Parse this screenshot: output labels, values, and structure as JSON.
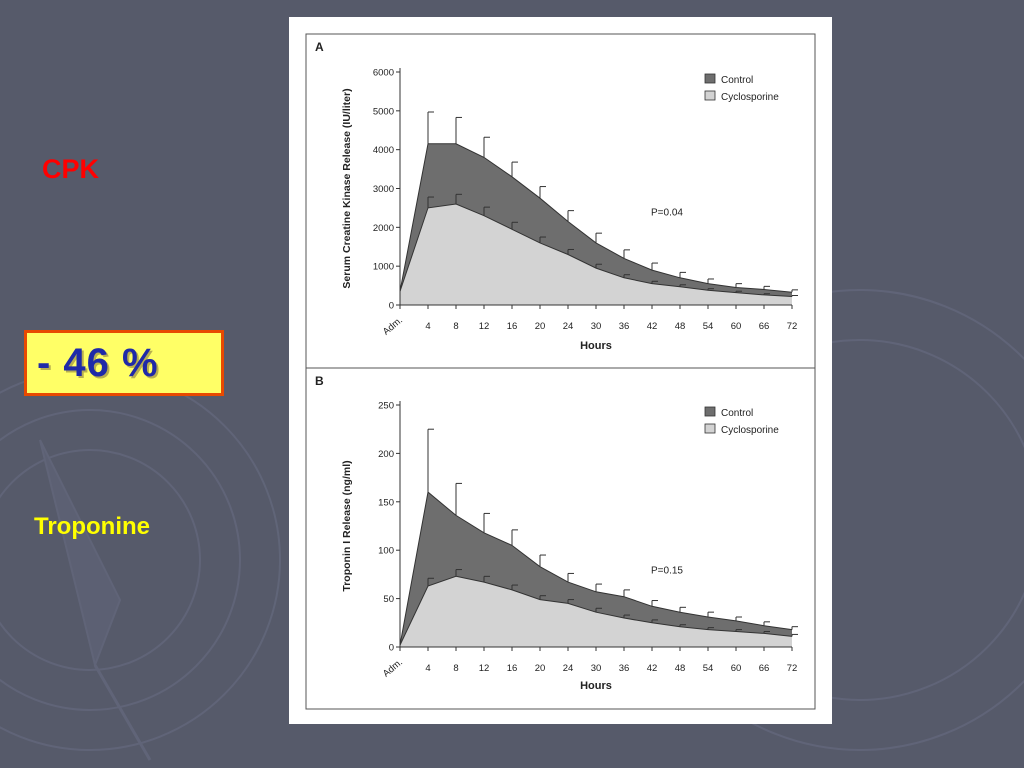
{
  "slide": {
    "label_cpk": "CPK",
    "reduction": "- 46 %",
    "label_troponine": "Troponine",
    "colors": {
      "background": "#565a6a",
      "cpk_label": "#ff0000",
      "troponine_label": "#ffff00",
      "box_fill": "#ffff66",
      "box_border": "#e84a00",
      "box_text": "#1f2aa8"
    }
  },
  "chart_data": [
    {
      "panel": "A",
      "type": "area",
      "x": [
        "Adm.",
        "4",
        "8",
        "12",
        "16",
        "20",
        "24",
        "30",
        "36",
        "42",
        "48",
        "54",
        "60",
        "66",
        "72"
      ],
      "xlabel": "Hours",
      "ylabel": "Serum Creatine Kinase Release (IU/liter)",
      "ylim": [
        0,
        6000
      ],
      "yticks": [
        0,
        1000,
        2000,
        3000,
        4000,
        5000,
        6000
      ],
      "series": [
        {
          "name": "Control",
          "color": "#6e6e6e",
          "values": [
            350,
            4150,
            4150,
            3800,
            3300,
            2750,
            2150,
            1600,
            1200,
            900,
            700,
            550,
            450,
            400,
            330
          ],
          "error": [
            0,
            820,
            680,
            520,
            380,
            300,
            280,
            250,
            220,
            180,
            140,
            120,
            100,
            80,
            60
          ]
        },
        {
          "name": "Cyclosporine",
          "color": "#d3d3d3",
          "values": [
            350,
            2500,
            2600,
            2300,
            1950,
            1600,
            1300,
            950,
            700,
            550,
            470,
            380,
            320,
            260,
            220
          ],
          "error": [
            0,
            280,
            250,
            220,
            180,
            150,
            130,
            100,
            80,
            60,
            50,
            40,
            35,
            30,
            25
          ]
        }
      ],
      "annotation": "P=0.04",
      "legend": "top-right"
    },
    {
      "panel": "B",
      "type": "area",
      "x": [
        "Adm.",
        "4",
        "8",
        "12",
        "16",
        "20",
        "24",
        "30",
        "36",
        "42",
        "48",
        "54",
        "60",
        "66",
        "72"
      ],
      "xlabel": "Hours",
      "ylabel": "Troponin I Release (ng/ml)",
      "ylim": [
        0,
        250
      ],
      "yticks": [
        0,
        50,
        100,
        150,
        200,
        250
      ],
      "series": [
        {
          "name": "Control",
          "color": "#6e6e6e",
          "values": [
            2,
            160,
            136,
            118,
            105,
            83,
            67,
            57,
            52,
            42,
            36,
            31,
            27,
            22,
            18
          ],
          "error": [
            0,
            65,
            33,
            20,
            16,
            12,
            9,
            8,
            7,
            6,
            5,
            5,
            4,
            4,
            3
          ]
        },
        {
          "name": "Cyclosporine",
          "color": "#d3d3d3",
          "values": [
            2,
            63,
            73,
            67,
            59,
            49,
            45,
            36,
            30,
            25,
            21,
            18,
            16,
            14,
            11
          ],
          "error": [
            0,
            8,
            7,
            6,
            5,
            4,
            4,
            4,
            3,
            3,
            2,
            2,
            2,
            2,
            2
          ]
        }
      ],
      "annotation": "P=0.15",
      "legend": "top-right"
    }
  ]
}
